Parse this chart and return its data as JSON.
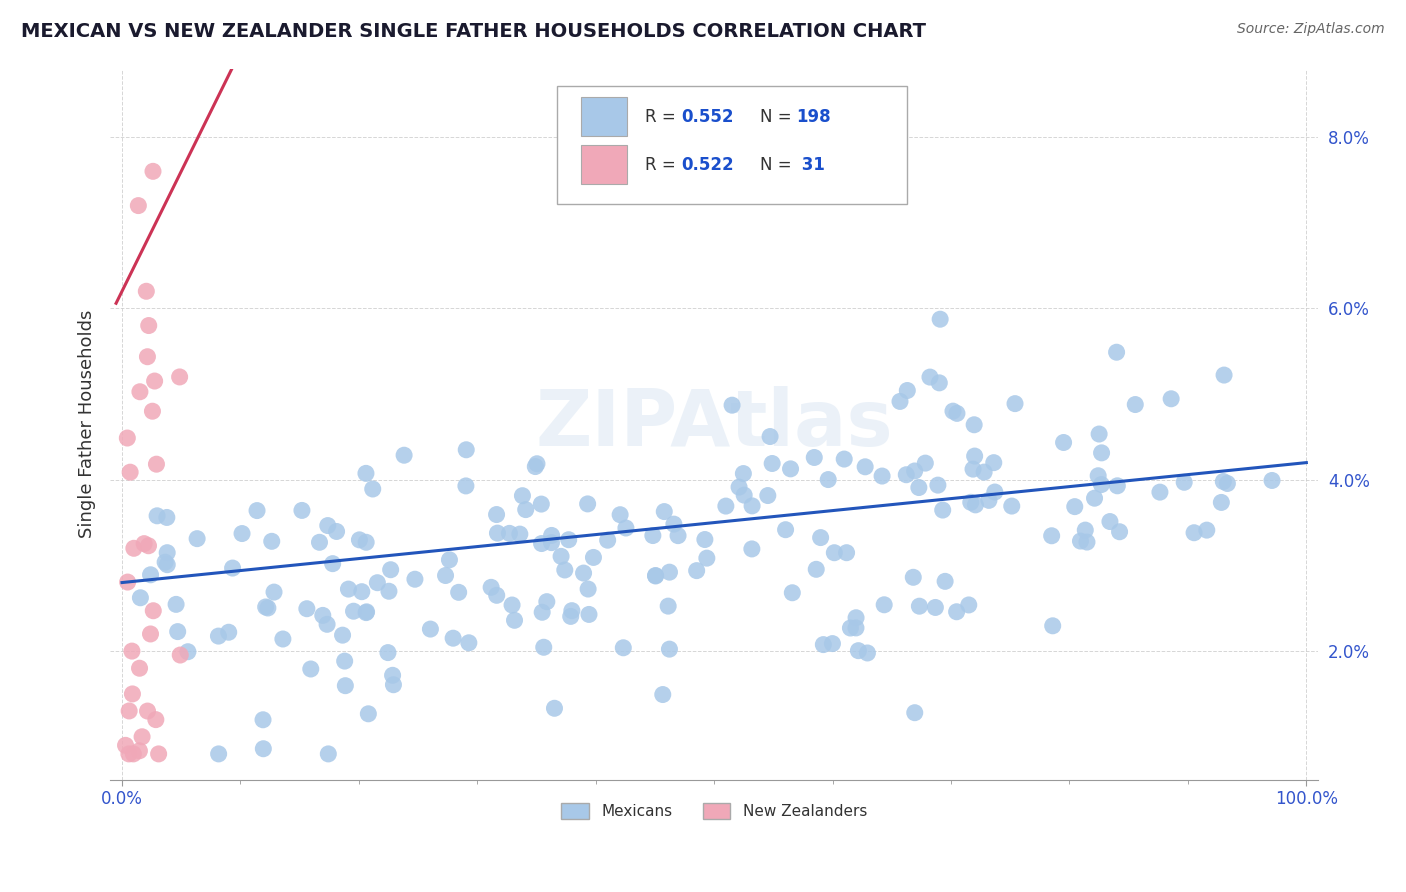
{
  "title": "MEXICAN VS NEW ZEALANDER SINGLE FATHER HOUSEHOLDS CORRELATION CHART",
  "source": "Source: ZipAtlas.com",
  "ylabel": "Single Father Households",
  "legend_labels": [
    "Mexicans",
    "New Zealanders"
  ],
  "watermark": "ZIPAtlas",
  "xlim": [
    -0.01,
    1.01
  ],
  "ylim": [
    0.005,
    0.088
  ],
  "yticks": [
    0.02,
    0.04,
    0.06,
    0.08
  ],
  "xtick_labels": [
    "0.0%",
    "100.0%"
  ],
  "xtick_positions": [
    0.0,
    1.0
  ],
  "title_color": "#1a1a2e",
  "axis_color": "#999999",
  "grid_color": "#cccccc",
  "legend_value_color": "#1a4fcc",
  "background_color": "#ffffff",
  "blue_color": "#a8c8e8",
  "blue_line_color": "#2255bb",
  "pink_color": "#f0a8b8",
  "pink_line_color": "#cc3355",
  "blue_R": 0.552,
  "blue_N": 198,
  "pink_R": 0.522,
  "pink_N": 31,
  "blue_intercept": 0.028,
  "blue_slope": 0.014,
  "pink_intercept": 0.062,
  "pink_slope": 0.28,
  "pink_line_xmax": 0.13
}
